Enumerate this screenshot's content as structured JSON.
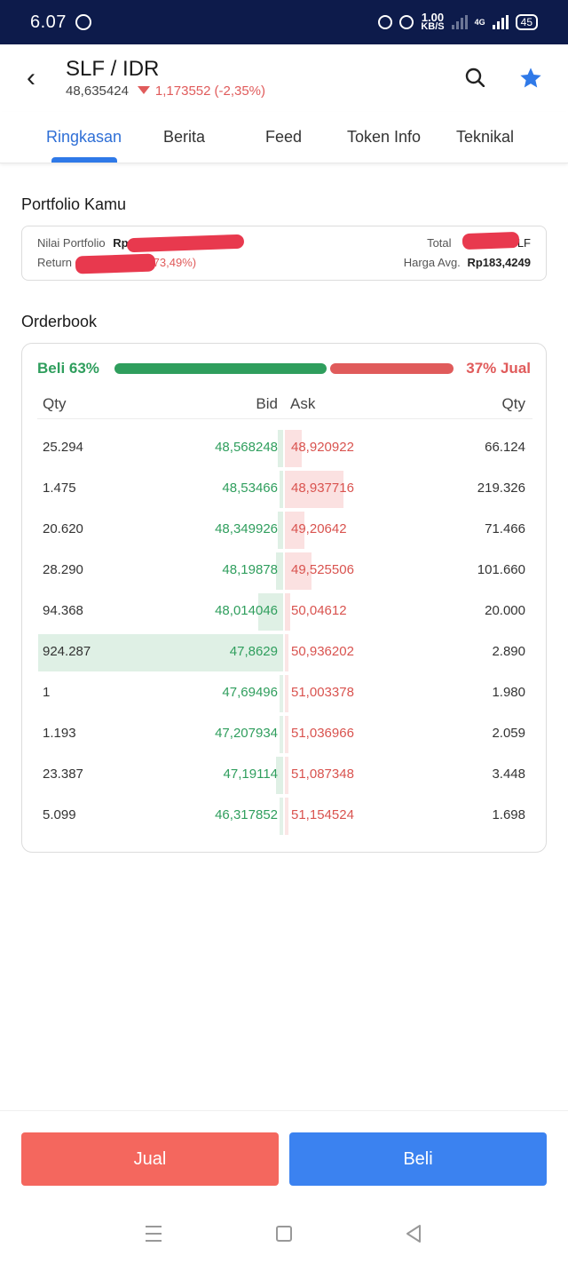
{
  "status_bar": {
    "time": "6.07",
    "speed_value": "1.00",
    "speed_unit": "KB/S",
    "network": "4G",
    "battery": "45"
  },
  "header": {
    "title": "SLF / IDR",
    "price": "48,635424",
    "change": "1,173552",
    "change_pct": "(-2,35%)"
  },
  "tabs": [
    {
      "label": "Ringkasan",
      "active": true
    },
    {
      "label": "Berita"
    },
    {
      "label": "Feed"
    },
    {
      "label": "Token Info"
    },
    {
      "label": "Teknikal"
    }
  ],
  "portfolio": {
    "title": "Portfolio Kamu",
    "nilai_label": "Nilai Portfolio",
    "nilai_prefix": "Rp",
    "return_label": "Return",
    "return_pct": "73,49%)",
    "total_label": "Total",
    "total_suffix": "SLF",
    "harga_label": "Harga Avg.",
    "harga_value": "Rp183,4249"
  },
  "orderbook": {
    "title": "Orderbook",
    "buy_label": "Beli 63%",
    "sell_label": "37% Jual",
    "buy_ratio": 0.63,
    "columns": {
      "qty_left": "Qty",
      "bid": "Bid",
      "ask": "Ask",
      "qty_right": "Qty"
    },
    "rows": [
      {
        "bid_qty": "25.294",
        "bid": "48,568248",
        "ask": "48,920922",
        "ask_qty": "66.124",
        "bid_depth": 0.02,
        "ask_depth": 0.07
      },
      {
        "bid_qty": "1.475",
        "bid": "48,53466",
        "ask": "48,937716",
        "ask_qty": "219.326",
        "bid_depth": 0.01,
        "ask_depth": 0.24
      },
      {
        "bid_qty": "20.620",
        "bid": "48,349926",
        "ask": "49,20642",
        "ask_qty": "71.466",
        "bid_depth": 0.02,
        "ask_depth": 0.08
      },
      {
        "bid_qty": "28.290",
        "bid": "48,19878",
        "ask": "49,525506",
        "ask_qty": "101.660",
        "bid_depth": 0.03,
        "ask_depth": 0.11
      },
      {
        "bid_qty": "94.368",
        "bid": "48,014046",
        "ask": "50,04612",
        "ask_qty": "20.000",
        "bid_depth": 0.1,
        "ask_depth": 0.02
      },
      {
        "bid_qty": "924.287",
        "bid": "47,8629",
        "ask": "50,936202",
        "ask_qty": "2.890",
        "bid_depth": 1.0,
        "ask_depth": 0.0
      },
      {
        "bid_qty": "1",
        "bid": "47,69496",
        "ask": "51,003378",
        "ask_qty": "1.980",
        "bid_depth": 0.0,
        "ask_depth": 0.0
      },
      {
        "bid_qty": "1.193",
        "bid": "47,207934",
        "ask": "51,036966",
        "ask_qty": "2.059",
        "bid_depth": 0.0,
        "ask_depth": 0.0
      },
      {
        "bid_qty": "23.387",
        "bid": "47,19114",
        "ask": "51,087348",
        "ask_qty": "3.448",
        "bid_depth": 0.03,
        "ask_depth": 0.0
      },
      {
        "bid_qty": "5.099",
        "bid": "46,317852",
        "ask": "51,154524",
        "ask_qty": "1.698",
        "bid_depth": 0.0,
        "ask_depth": 0.0
      }
    ]
  },
  "actions": {
    "sell": "Jual",
    "buy": "Beli"
  },
  "colors": {
    "buy": "#2f9e5d",
    "sell": "#e05b5b",
    "accent": "#2f79e8",
    "status_bar": "#0d1b4b"
  },
  "icons": [
    "whatsapp-icon",
    "bell-off-icon",
    "alarm-icon",
    "signal-icon",
    "battery-icon",
    "back-arrow-icon",
    "search-icon",
    "star-icon",
    "menu-icon",
    "home-icon",
    "nav-back-icon"
  ]
}
